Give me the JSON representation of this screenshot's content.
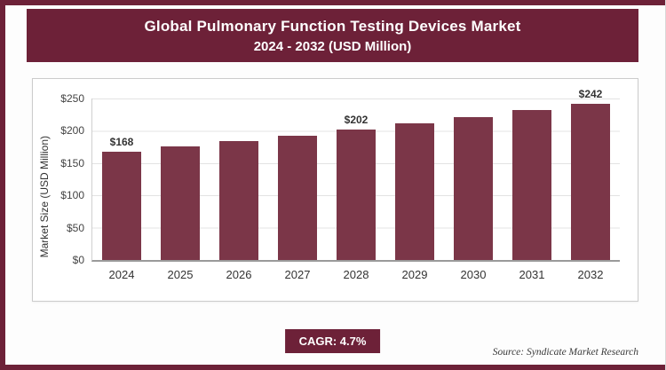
{
  "header": {
    "title_line1": "Global Pulmonary Function Testing Devices Market",
    "title_line2": "2024 - 2032 (USD Million)",
    "bg_color": "#6d2138"
  },
  "chart_data": {
    "type": "bar",
    "title": "Global Pulmonary Function Testing Devices Market 2024 - 2032 (USD Million)",
    "xlabel": "",
    "ylabel": "Market Size (USD Million)",
    "ylim": [
      0,
      250
    ],
    "yticks": [
      0,
      50,
      100,
      150,
      200,
      250
    ],
    "ytick_labels": [
      "$0",
      "$50",
      "$100",
      "$150",
      "$200",
      "$250"
    ],
    "grid": true,
    "legend": "none",
    "bar_color": "#7b3648",
    "categories": [
      "2024",
      "2025",
      "2026",
      "2027",
      "2028",
      "2029",
      "2030",
      "2031",
      "2032"
    ],
    "values": [
      168,
      176,
      184,
      193,
      202,
      211,
      221,
      232,
      242
    ],
    "data_labels": {
      "2024": "$168",
      "2028": "$202",
      "2032": "$242"
    }
  },
  "footer": {
    "cagr_label": "CAGR: 4.7%",
    "source": "Source: Syndicate Market Research"
  }
}
